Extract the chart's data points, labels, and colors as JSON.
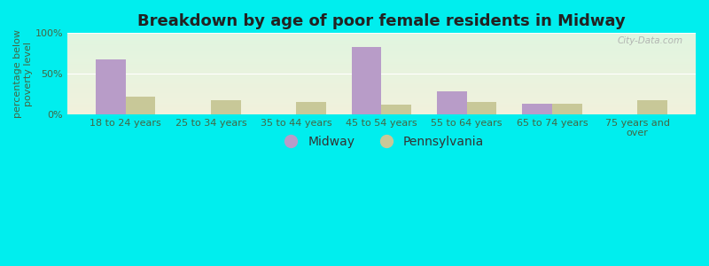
{
  "title": "Breakdown by age of poor female residents in Midway",
  "categories": [
    "18 to 24 years",
    "25 to 34 years",
    "35 to 44 years",
    "45 to 54 years",
    "55 to 64 years",
    "65 to 74 years",
    "75 years and\nover"
  ],
  "midway_values": [
    68,
    0,
    0,
    83,
    28,
    13,
    0
  ],
  "pennsylvania_values": [
    22,
    17,
    15,
    12,
    15,
    13,
    17
  ],
  "midway_color": "#b89cc8",
  "pennsylvania_color": "#c8c898",
  "ylabel": "percentage below\npoverty level",
  "ylim": [
    0,
    100
  ],
  "yticks": [
    0,
    50,
    100
  ],
  "ytick_labels": [
    "0%",
    "50%",
    "100%"
  ],
  "fig_bg_color": "#00eeee",
  "plot_bg_color_top": "#e0f0e0",
  "plot_bg_color_bottom": "#f0f0dc",
  "bar_width": 0.35,
  "title_fontsize": 13,
  "axis_fontsize": 8,
  "legend_fontsize": 10,
  "watermark": "City-Data.com"
}
